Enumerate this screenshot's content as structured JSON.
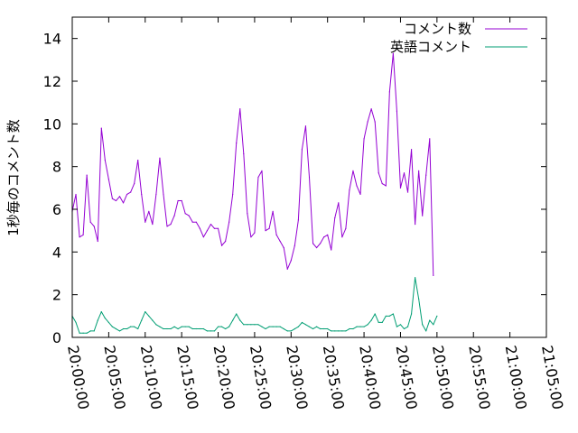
{
  "chart_data": {
    "type": "line",
    "title": "",
    "xlabel": "",
    "ylabel": "1秒毎のコメント数",
    "x_unit": "time",
    "xlim": [
      "20:00:00",
      "21:05:00"
    ],
    "ylim": [
      0,
      15
    ],
    "x_ticks": [
      "20:00:00",
      "20:05:00",
      "20:10:00",
      "20:15:00",
      "20:20:00",
      "20:25:00",
      "20:30:00",
      "20:35:00",
      "20:40:00",
      "20:45:00",
      "20:50:00",
      "20:55:00",
      "21:00:00",
      "21:05:00"
    ],
    "y_ticks": [
      "0",
      "2",
      "4",
      "6",
      "8",
      "10",
      "12",
      "14"
    ],
    "grid": false,
    "legend_position": "top-right",
    "sample_interval_seconds": 30,
    "series": [
      {
        "name": "コメント数",
        "color": "#9400d3",
        "values": [
          5.9,
          6.7,
          4.7,
          4.8,
          7.6,
          5.4,
          5.2,
          4.5,
          9.8,
          8.3,
          7.4,
          6.5,
          6.4,
          6.6,
          6.3,
          6.7,
          6.8,
          7.2,
          8.3,
          6.7,
          5.4,
          5.9,
          5.3,
          6.7,
          8.4,
          6.7,
          5.2,
          5.3,
          5.7,
          6.4,
          6.4,
          5.8,
          5.7,
          5.4,
          5.4,
          5.1,
          4.7,
          5.0,
          5.3,
          5.1,
          5.1,
          4.3,
          4.5,
          5.4,
          6.7,
          9.1,
          10.7,
          8.6,
          5.8,
          4.7,
          4.9,
          7.5,
          7.8,
          5.0,
          5.1,
          5.9,
          4.8,
          4.5,
          4.2,
          3.2,
          3.6,
          4.3,
          5.5,
          8.8,
          9.9,
          7.5,
          4.4,
          4.2,
          4.4,
          4.7,
          4.8,
          4.1,
          5.6,
          6.3,
          4.7,
          5.1,
          6.9,
          7.8,
          7.1,
          6.7,
          9.3,
          10.1,
          10.7,
          10.1,
          7.7,
          7.2,
          7.1,
          11.5,
          13.3,
          10.6,
          7.0,
          7.7,
          6.8,
          8.8,
          5.3,
          7.8,
          5.7,
          7.6,
          9.3,
          2.9
        ]
      },
      {
        "name": "英語コメント",
        "color": "#009e73",
        "values": [
          1.0,
          0.7,
          0.2,
          0.2,
          0.2,
          0.3,
          0.3,
          0.8,
          1.2,
          0.9,
          0.7,
          0.5,
          0.4,
          0.3,
          0.4,
          0.4,
          0.5,
          0.5,
          0.4,
          0.8,
          1.2,
          1.0,
          0.8,
          0.6,
          0.5,
          0.4,
          0.4,
          0.4,
          0.5,
          0.4,
          0.5,
          0.5,
          0.5,
          0.4,
          0.4,
          0.4,
          0.4,
          0.3,
          0.3,
          0.3,
          0.5,
          0.5,
          0.4,
          0.5,
          0.8,
          1.1,
          0.8,
          0.6,
          0.6,
          0.6,
          0.6,
          0.6,
          0.5,
          0.4,
          0.5,
          0.5,
          0.5,
          0.5,
          0.4,
          0.3,
          0.3,
          0.4,
          0.5,
          0.7,
          0.6,
          0.5,
          0.4,
          0.5,
          0.4,
          0.4,
          0.4,
          0.3,
          0.3,
          0.3,
          0.3,
          0.3,
          0.4,
          0.4,
          0.5,
          0.5,
          0.5,
          0.6,
          0.8,
          1.1,
          0.7,
          0.7,
          1.0,
          1.0,
          1.1,
          0.5,
          0.6,
          0.4,
          0.5,
          1.1,
          2.8,
          1.8,
          0.6,
          0.3,
          0.8,
          0.6,
          1.0
        ]
      }
    ]
  }
}
